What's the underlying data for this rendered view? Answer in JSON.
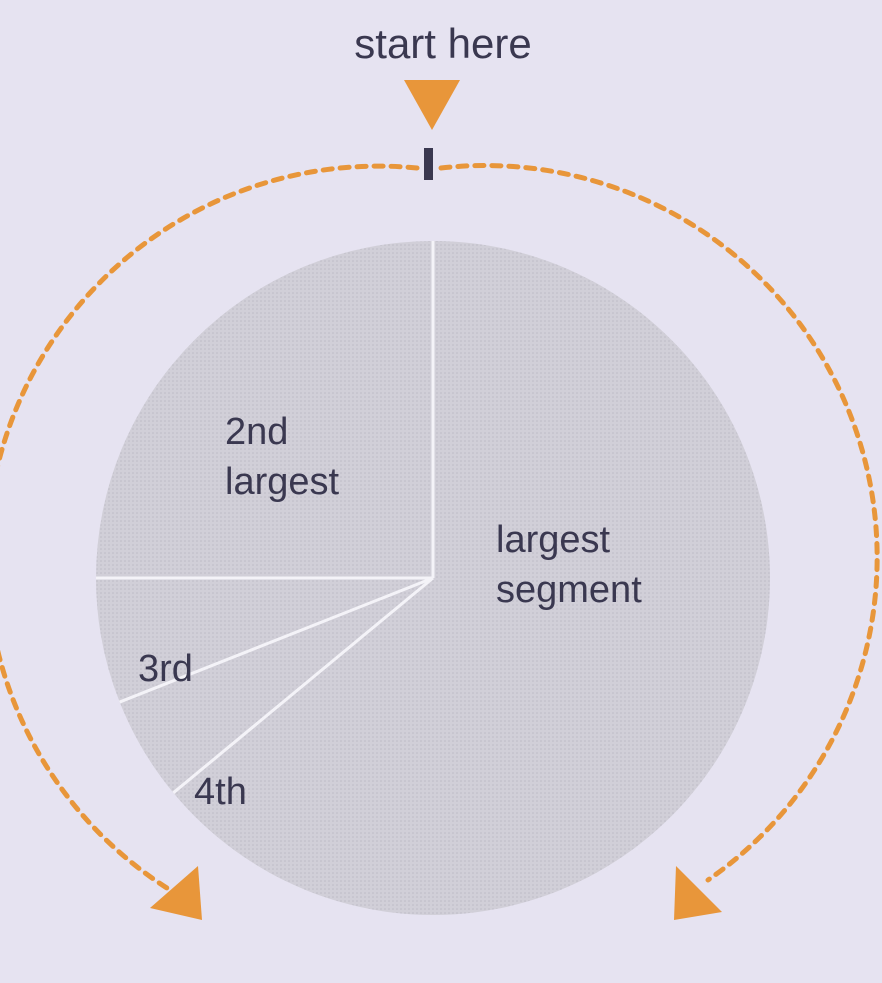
{
  "title": "start here",
  "chart_data": {
    "type": "pie",
    "start": "top (12 o'clock), reading clockwise",
    "slices": [
      {
        "label_lines": [
          "largest",
          "segment"
        ],
        "value": 64
      },
      {
        "label_lines": [
          "4th"
        ],
        "value": 5
      },
      {
        "label_lines": [
          "3rd"
        ],
        "value": 6
      },
      {
        "label_lines": [
          "2nd",
          "largest"
        ],
        "value": 25
      }
    ]
  },
  "colors": {
    "background": "#e6e3f1",
    "pie_fill": "#cfcdd6",
    "divider": "#f4f3f8",
    "arrow": "#e8963a",
    "text": "#3a3850",
    "start_tick": "#3a3850"
  }
}
